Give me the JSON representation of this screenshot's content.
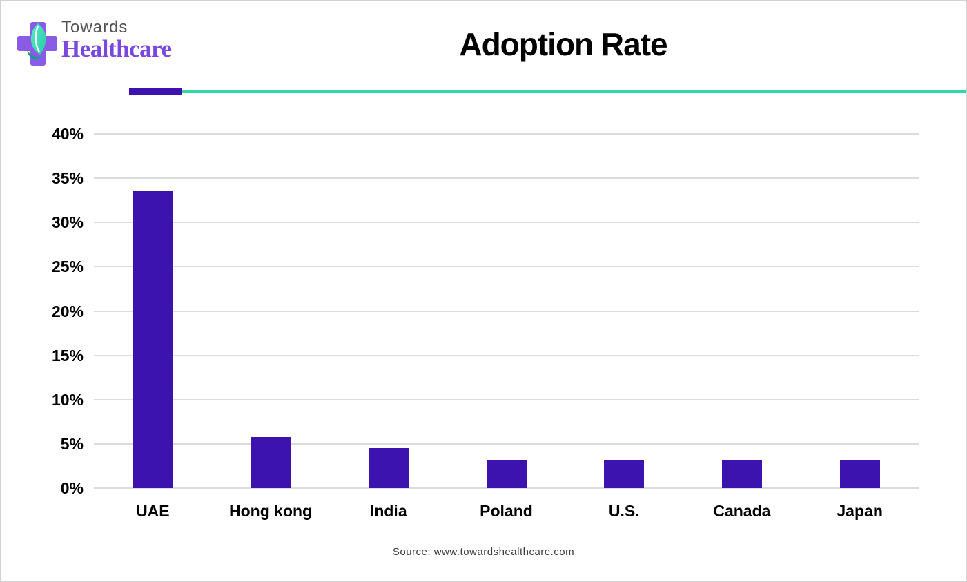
{
  "logo": {
    "line1": "Towards",
    "line2": "Healthcare",
    "icons": {
      "cross": "medical-cross-icon",
      "leaf": "leaf-icon"
    },
    "colors": {
      "cross_purple": "#8a5be4",
      "leaf_teal_light": "#55eac8",
      "leaf_teal_dark": "#27cda6",
      "leaf_swoosh": "#0ea186",
      "towards_gray": "#515254",
      "healthcare_purple": "#7a48df"
    }
  },
  "header": {
    "title": "Adoption Rate"
  },
  "divider": {
    "purple_color": "#3d13b0",
    "teal_color": "#2fd7a2"
  },
  "chart_data": {
    "type": "bar",
    "title": "Adoption Rate",
    "categories": [
      "UAE",
      "Hong kong",
      "India",
      "Poland",
      "U.S.",
      "Canada",
      "Japan"
    ],
    "values": [
      33.6,
      5.8,
      4.5,
      3.1,
      3.1,
      3.1,
      3.1
    ],
    "xlabel": "",
    "ylabel": "",
    "ylim": [
      0,
      44
    ],
    "yticks": [
      0,
      5,
      10,
      15,
      20,
      25,
      30,
      35,
      40
    ],
    "ytick_labels": [
      "0%",
      "5%",
      "10%",
      "15%",
      "20%",
      "25%",
      "30%",
      "35%",
      "40%"
    ],
    "bar_color": "#3d13b0",
    "gridline_color": "#dcdcdc",
    "grid": true,
    "legend": false,
    "legend_position": "none"
  },
  "footer": {
    "source": "Source: www.towardshealthcare.com"
  }
}
